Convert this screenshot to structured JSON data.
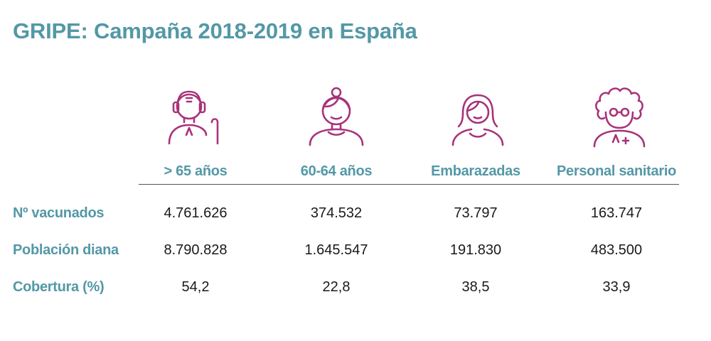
{
  "title": "GRIPE: Campaña 2018-2019 en España",
  "colors": {
    "accent_teal": "#5398a6",
    "icon_magenta": "#a8327a",
    "text": "#1a1a1a"
  },
  "chart_data": {
    "type": "table",
    "title": "GRIPE: Campaña 2018-2019 en España",
    "columns": [
      {
        "label": "> 65 años",
        "icon": "elderly-man-cane-icon"
      },
      {
        "label": "60-64 años",
        "icon": "woman-hair-bun-icon"
      },
      {
        "label": "Embarazadas",
        "icon": "pregnant-woman-icon"
      },
      {
        "label": "Personal sanitario",
        "icon": "health-worker-glasses-icon"
      }
    ],
    "rows": [
      {
        "label": "Nº vacunados",
        "values": [
          "4.761.626",
          "374.532",
          "73.797",
          "163.747"
        ]
      },
      {
        "label": "Población diana",
        "values": [
          "8.790.828",
          "1.645.547",
          "191.830",
          "483.500"
        ]
      },
      {
        "label": "Cobertura (%)",
        "values": [
          "54,2",
          "22,8",
          "38,5",
          "33,9"
        ]
      }
    ]
  }
}
